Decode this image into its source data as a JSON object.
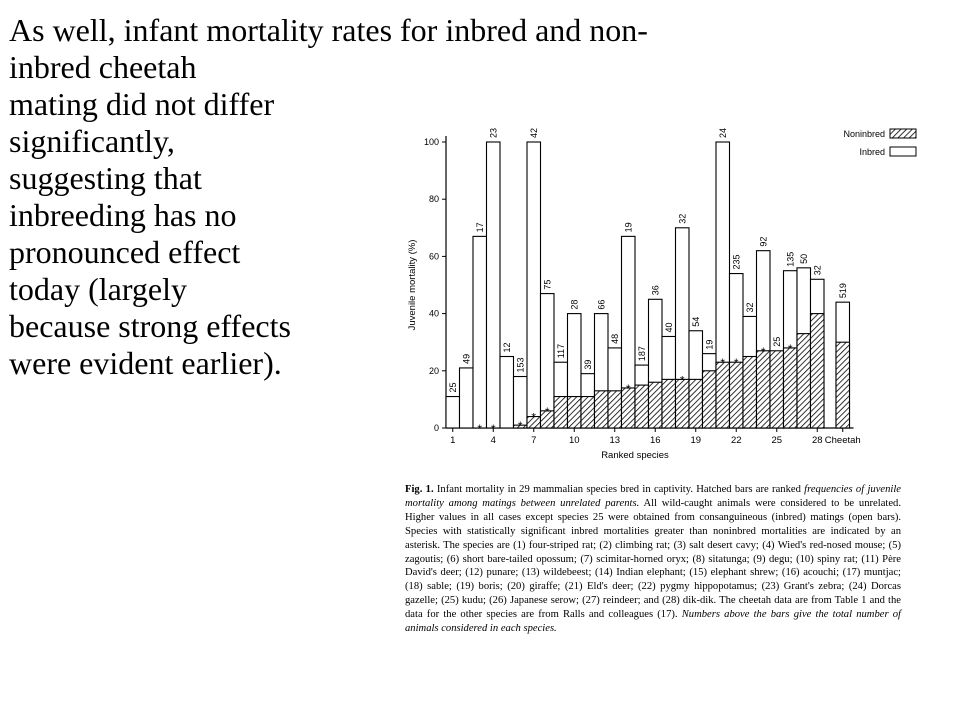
{
  "slide": {
    "lines": [
      "As well, infant mortality rates for inbred and non-",
      "inbred cheetah",
      "mating did not differ",
      "significantly,",
      "suggesting that",
      "inbreeding has no",
      "pronounced effect",
      "today (largely",
      "because strong effects",
      "were evident earlier)."
    ]
  },
  "chart_data": {
    "type": "bar",
    "ylabel": "Juvenile mortality (%)",
    "xlabel": "Ranked species",
    "ylim": [
      0,
      100
    ],
    "y_ticks": [
      "0",
      "20",
      "40",
      "60",
      "80",
      "100"
    ],
    "x_ticks": [
      "1",
      "4",
      "7",
      "10",
      "13",
      "16",
      "19",
      "22",
      "25",
      "28",
      "Cheetah"
    ],
    "legend": {
      "position": "top-right",
      "entries": [
        {
          "label": "Noninbred",
          "fill": "hatched"
        },
        {
          "label": "Inbred",
          "fill": "open"
        }
      ]
    },
    "significance_marker": "*",
    "colors": {
      "ink": "#000000",
      "open": "#ffffff"
    },
    "species": [
      {
        "id": "1",
        "noninbred": 0,
        "noninbred_n": "",
        "inbred": 11,
        "inbred_n": "25",
        "star": false
      },
      {
        "id": "2",
        "noninbred": 0,
        "noninbred_n": "",
        "inbred": 21,
        "inbred_n": "49",
        "star": false
      },
      {
        "id": "3",
        "noninbred": 0,
        "noninbred_n": "",
        "inbred": 67,
        "inbred_n": "17",
        "star": true
      },
      {
        "id": "4",
        "noninbred": 0,
        "noninbred_n": "",
        "inbred": 100,
        "inbred_n": "23",
        "star": true
      },
      {
        "id": "5",
        "noninbred": 0,
        "noninbred_n": "",
        "inbred": 25,
        "inbred_n": "12",
        "star": false
      },
      {
        "id": "6",
        "noninbred": 1,
        "noninbred_n": "153",
        "inbred": 18,
        "inbred_n": "",
        "star": true
      },
      {
        "id": "7",
        "noninbred": 4,
        "noninbred_n": "",
        "inbred": 100,
        "inbred_n": "42",
        "star": true
      },
      {
        "id": "8",
        "noninbred": 6,
        "noninbred_n": "",
        "inbred": 47,
        "inbred_n": "75",
        "star": true
      },
      {
        "id": "9",
        "noninbred": 11,
        "noninbred_n": "",
        "inbred": 23,
        "inbred_n": "117",
        "star": false
      },
      {
        "id": "10",
        "noninbred": 11,
        "noninbred_n": "",
        "inbred": 40,
        "inbred_n": "28",
        "star": false
      },
      {
        "id": "11",
        "noninbred": 11,
        "noninbred_n": "",
        "inbred": 19,
        "inbred_n": "39",
        "star": false
      },
      {
        "id": "12",
        "noninbred": 13,
        "noninbred_n": "",
        "inbred": 40,
        "inbred_n": "66",
        "star": false
      },
      {
        "id": "13",
        "noninbred": 13,
        "noninbred_n": "",
        "inbred": 28,
        "inbred_n": "48",
        "star": false
      },
      {
        "id": "14",
        "noninbred": 14,
        "noninbred_n": "",
        "inbred": 67,
        "inbred_n": "19",
        "star": true
      },
      {
        "id": "15",
        "noninbred": 15,
        "noninbred_n": "",
        "inbred": 22,
        "inbred_n": "187",
        "star": false
      },
      {
        "id": "16",
        "noninbred": 16,
        "noninbred_n": "",
        "inbred": 45,
        "inbred_n": "36",
        "star": false
      },
      {
        "id": "17",
        "noninbred": 17,
        "noninbred_n": "",
        "inbred": 32,
        "inbred_n": "40",
        "star": false
      },
      {
        "id": "18",
        "noninbred": 17,
        "noninbred_n": "",
        "inbred": 70,
        "inbred_n": "32",
        "star": true
      },
      {
        "id": "19",
        "noninbred": 17,
        "noninbred_n": "",
        "inbred": 34,
        "inbred_n": "54",
        "star": false
      },
      {
        "id": "20",
        "noninbred": 20,
        "noninbred_n": "",
        "inbred": 26,
        "inbred_n": "19",
        "star": false
      },
      {
        "id": "21",
        "noninbred": 23,
        "noninbred_n": "",
        "inbred": 100,
        "inbred_n": "24",
        "star": true
      },
      {
        "id": "22",
        "noninbred": 23,
        "noninbred_n": "",
        "inbred": 54,
        "inbred_n": "235",
        "star": true
      },
      {
        "id": "23",
        "noninbred": 25,
        "noninbred_n": "",
        "inbred": 39,
        "inbred_n": "32",
        "star": false
      },
      {
        "id": "24",
        "noninbred": 27,
        "noninbred_n": "",
        "inbred": 62,
        "inbred_n": "92",
        "star": true
      },
      {
        "id": "25",
        "noninbred": 27,
        "noninbred_n": "",
        "inbred": 26,
        "inbred_n": "25",
        "star": false
      },
      {
        "id": "26",
        "noninbred": 28,
        "noninbred_n": "",
        "inbred": 55,
        "inbred_n": "135",
        "star": true
      },
      {
        "id": "27",
        "noninbred": 33,
        "noninbred_n": "",
        "inbred": 56,
        "inbred_n": "50",
        "star": false
      },
      {
        "id": "28",
        "noninbred": 40,
        "noninbred_n": "",
        "inbred": 52,
        "inbred_n": "32",
        "star": false
      },
      {
        "id": "Cheetah",
        "noninbred": 30,
        "noninbred_n": "",
        "inbred": 44,
        "inbred_n": "519",
        "star": false
      }
    ]
  },
  "caption": {
    "head": "Fig. 1.",
    "text_1": " Infant mortality in 29 mammalian species bred in captivity. Hatched bars are ranked ",
    "italic_1": "frequencies of juvenile mortality among matings between unrelated parents.",
    "text_2": " All wild-caught animals were considered to be unrelated. Higher values in all cases except species 25 were obtained from consanguineous (inbred) matings (open bars). Species with statistically significant inbred mortalities greater than noninbred mortalities are indicated by an asterisk. The species are (1) four-striped rat; (2) climbing rat; (3) salt desert cavy; (4) Wied's red-nosed mouse; (5) zagoutis; (6) short bare-tailed opossum; (7) scimitar-horned oryx; (8) sitatunga; (9) degu; (10) spiny rat; (11) Père David's deer; (12) punare; (13) wildebeest; (14) Indian elephant; (15) elephant shrew; (16) acouchi; (17) muntjac; (18) sable; (19) boris; (20) giraffe; (21) Eld's deer; (22) pygmy hippopotamus; (23) Grant's zebra; (24) Dorcas gazelle; (25) kudu; (26) Japanese serow; (27) reindeer; and (28) dik-dik. The cheetah data are from Table 1 and the data for the other species are from Ralls and colleagues (17). ",
    "italic_2": "Numbers above the bars give the total number of animals considered in each species."
  }
}
